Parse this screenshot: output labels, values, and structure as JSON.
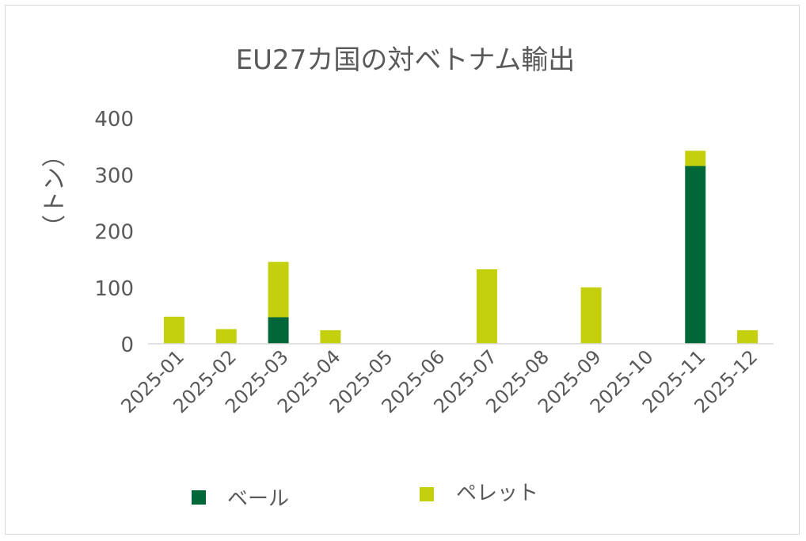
{
  "chart_data": {
    "type": "bar",
    "stacked": true,
    "title": "EU27カ国の対ベトナム輸出",
    "ylabel": "（トン）",
    "xlabel": "",
    "categories": [
      "2025-01",
      "2025-02",
      "2025-03",
      "2025-04",
      "2025-05",
      "2025-06",
      "2025-07",
      "2025-08",
      "2025-09",
      "2025-10",
      "2025-11",
      "2025-12"
    ],
    "series": [
      {
        "name": "ベール",
        "color": "#006838",
        "values": [
          0,
          0,
          47,
          0,
          0,
          0,
          0,
          0,
          0,
          0,
          315,
          0
        ]
      },
      {
        "name": "ペレット",
        "color": "#c4d00d",
        "values": [
          48,
          26,
          98,
          24,
          0,
          0,
          132,
          0,
          100,
          0,
          27,
          24
        ]
      }
    ],
    "ylim": [
      0,
      400
    ],
    "yticks": [
      0,
      100,
      200,
      300,
      400
    ],
    "grid": false,
    "legend": "bottom"
  }
}
